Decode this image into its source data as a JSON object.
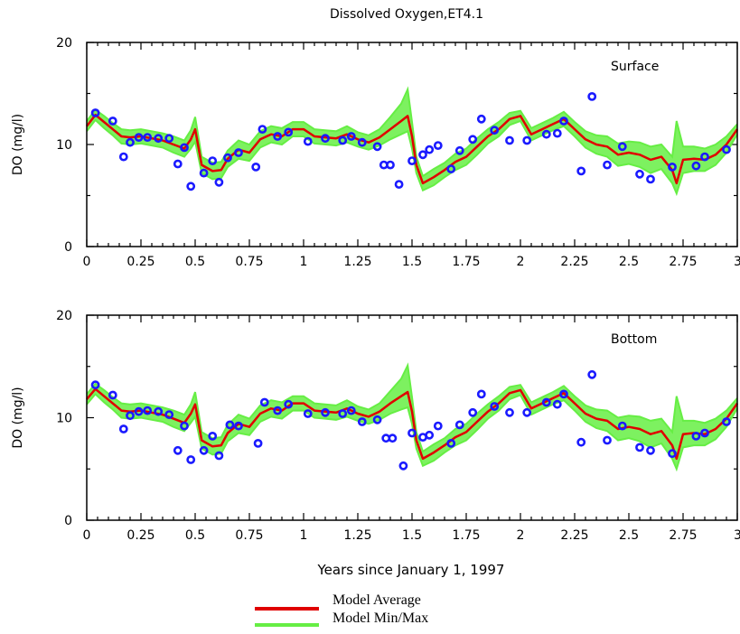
{
  "chart_data": {
    "type": "line",
    "title": "Dissolved Oxygen,ET4.1",
    "xlabel": "Years since January 1, 1997",
    "xlim": [
      0,
      3
    ],
    "x_ticks": [
      "0",
      "0.25",
      "0.5",
      "0.75",
      "1",
      "1.25",
      "1.5",
      "1.75",
      "2",
      "2.25",
      "2.5",
      "2.75",
      "3"
    ],
    "legend": {
      "placement": "bottom-center",
      "entries": [
        {
          "name": "Model Average",
          "color": "#e00000"
        },
        {
          "name": "Model Min/Max",
          "color": "#66ee44"
        }
      ]
    },
    "observation_color": "#1a1aff",
    "panels": [
      {
        "label": "Surface",
        "ylabel": "DO (mg/l)",
        "ylim": [
          0,
          20
        ],
        "y_ticks": [
          "0",
          "10",
          "20"
        ],
        "series": [
          {
            "name": "Model Average",
            "x": [
              0,
              0.04,
              0.08,
              0.12,
              0.16,
              0.2,
              0.25,
              0.3,
              0.35,
              0.4,
              0.45,
              0.48,
              0.5,
              0.53,
              0.58,
              0.62,
              0.65,
              0.7,
              0.75,
              0.8,
              0.85,
              0.9,
              0.95,
              1.0,
              1.05,
              1.1,
              1.15,
              1.2,
              1.25,
              1.3,
              1.35,
              1.4,
              1.45,
              1.48,
              1.5,
              1.52,
              1.55,
              1.6,
              1.65,
              1.7,
              1.75,
              1.8,
              1.85,
              1.9,
              1.95,
              2.0,
              2.05,
              2.1,
              2.15,
              2.2,
              2.25,
              2.3,
              2.35,
              2.4,
              2.45,
              2.5,
              2.55,
              2.6,
              2.65,
              2.7,
              2.72,
              2.75,
              2.8,
              2.85,
              2.9,
              2.95,
              3.0
            ],
            "y": [
              11.8,
              12.9,
              12.2,
              11.5,
              10.8,
              10.7,
              10.8,
              10.6,
              10.4,
              10.0,
              9.6,
              10.5,
              11.5,
              8.0,
              7.4,
              7.5,
              8.6,
              9.5,
              9.2,
              10.5,
              11.0,
              10.8,
              11.5,
              11.5,
              10.8,
              10.7,
              10.6,
              11.0,
              10.5,
              10.2,
              10.7,
              11.5,
              12.3,
              12.8,
              10.8,
              8.0,
              6.2,
              6.8,
              7.5,
              8.3,
              8.8,
              9.8,
              10.8,
              11.5,
              12.5,
              12.8,
              11.0,
              11.5,
              12.0,
              12.5,
              11.5,
              10.5,
              10.0,
              9.8,
              9.0,
              9.2,
              9.0,
              8.5,
              8.8,
              7.5,
              6.2,
              8.5,
              8.6,
              8.5,
              9.0,
              10.0,
              11.5
            ]
          },
          {
            "name": "Model Min/Max",
            "x": [
              0,
              0.04,
              0.08,
              0.12,
              0.16,
              0.2,
              0.25,
              0.3,
              0.35,
              0.4,
              0.45,
              0.48,
              0.5,
              0.53,
              0.58,
              0.62,
              0.65,
              0.7,
              0.75,
              0.8,
              0.85,
              0.9,
              0.95,
              1.0,
              1.05,
              1.1,
              1.15,
              1.2,
              1.25,
              1.3,
              1.35,
              1.4,
              1.45,
              1.48,
              1.5,
              1.52,
              1.55,
              1.6,
              1.65,
              1.7,
              1.75,
              1.8,
              1.85,
              1.9,
              1.95,
              2.0,
              2.05,
              2.1,
              2.15,
              2.2,
              2.25,
              2.3,
              2.35,
              2.4,
              2.45,
              2.5,
              2.55,
              2.6,
              2.65,
              2.7,
              2.72,
              2.75,
              2.8,
              2.85,
              2.9,
              2.95,
              3.0
            ],
            "y_min": [
              11.3,
              12.4,
              11.6,
              10.9,
              10.1,
              10.0,
              10.1,
              9.9,
              9.7,
              9.2,
              8.8,
              9.6,
              10.3,
              7.2,
              6.6,
              6.7,
              7.8,
              8.6,
              8.4,
              9.7,
              10.2,
              10.0,
              10.8,
              10.8,
              10.1,
              10.0,
              9.9,
              10.2,
              9.8,
              9.5,
              9.9,
              10.5,
              11.0,
              11.3,
              9.6,
              7.2,
              5.5,
              6.0,
              6.8,
              7.5,
              8.0,
              9.0,
              10.1,
              10.8,
              11.9,
              12.3,
              10.4,
              10.9,
              11.4,
              11.8,
              10.8,
              9.7,
              9.1,
              8.8,
              7.9,
              8.1,
              7.8,
              7.2,
              7.6,
              6.2,
              5.2,
              7.2,
              7.4,
              7.4,
              8.0,
              9.2,
              11.0
            ],
            "y_max": [
              12.3,
              13.4,
              12.8,
              12.1,
              11.5,
              11.4,
              11.5,
              11.3,
              11.1,
              10.8,
              10.4,
              11.4,
              12.7,
              8.8,
              8.2,
              8.3,
              9.4,
              10.4,
              10.0,
              11.3,
              11.8,
              11.6,
              12.2,
              12.2,
              11.5,
              11.4,
              11.3,
              11.8,
              11.2,
              10.9,
              11.5,
              12.7,
              14.0,
              15.4,
              12.2,
              8.8,
              6.9,
              7.6,
              8.2,
              9.1,
              9.6,
              10.6,
              11.5,
              12.2,
              13.1,
              13.3,
              11.6,
              12.1,
              12.6,
              13.2,
              12.2,
              11.3,
              10.9,
              10.8,
              10.1,
              10.3,
              10.2,
              9.8,
              10.0,
              8.8,
              12.3,
              9.8,
              9.8,
              9.6,
              10.0,
              10.8,
              12.0
            ]
          },
          {
            "name": "Observations",
            "x": [
              0.04,
              0.12,
              0.17,
              0.2,
              0.24,
              0.28,
              0.33,
              0.38,
              0.42,
              0.45,
              0.48,
              0.54,
              0.58,
              0.61,
              0.65,
              0.7,
              0.78,
              0.81,
              0.88,
              0.93,
              1.02,
              1.1,
              1.18,
              1.22,
              1.27,
              1.34,
              1.37,
              1.4,
              1.44,
              1.5,
              1.55,
              1.58,
              1.62,
              1.68,
              1.72,
              1.78,
              1.82,
              1.88,
              1.95,
              2.03,
              2.12,
              2.17,
              2.2,
              2.28,
              2.33,
              2.4,
              2.47,
              2.55,
              2.6,
              2.7,
              2.81,
              2.85,
              2.95
            ],
            "y": [
              13.1,
              12.3,
              8.8,
              10.2,
              10.7,
              10.7,
              10.6,
              10.6,
              8.1,
              9.7,
              5.9,
              7.2,
              8.4,
              6.3,
              8.7,
              9.2,
              7.8,
              11.5,
              10.8,
              11.2,
              10.3,
              10.6,
              10.4,
              10.8,
              10.2,
              9.8,
              8.0,
              8.0,
              6.1,
              8.4,
              9.0,
              9.5,
              9.9,
              7.6,
              9.4,
              10.5,
              12.5,
              11.4,
              10.4,
              10.4,
              11.0,
              11.1,
              12.3,
              7.4,
              14.7,
              8.0,
              9.8,
              7.1,
              6.6,
              7.8,
              7.9,
              8.8,
              9.5
            ]
          }
        ]
      },
      {
        "label": "Bottom",
        "ylabel": "DO (mg/l)",
        "ylim": [
          0,
          20
        ],
        "y_ticks": [
          "0",
          "10",
          "20"
        ],
        "series": [
          {
            "name": "Model Average",
            "x": [
              0,
              0.04,
              0.08,
              0.12,
              0.16,
              0.2,
              0.25,
              0.3,
              0.35,
              0.4,
              0.45,
              0.48,
              0.5,
              0.53,
              0.58,
              0.62,
              0.65,
              0.7,
              0.75,
              0.8,
              0.85,
              0.9,
              0.95,
              1.0,
              1.05,
              1.1,
              1.15,
              1.2,
              1.25,
              1.3,
              1.35,
              1.4,
              1.45,
              1.48,
              1.5,
              1.52,
              1.55,
              1.6,
              1.65,
              1.7,
              1.75,
              1.8,
              1.85,
              1.9,
              1.95,
              2.0,
              2.05,
              2.1,
              2.15,
              2.2,
              2.25,
              2.3,
              2.35,
              2.4,
              2.45,
              2.5,
              2.55,
              2.6,
              2.65,
              2.7,
              2.72,
              2.75,
              2.8,
              2.85,
              2.9,
              2.95,
              3.0
            ],
            "y": [
              11.8,
              12.8,
              12.1,
              11.4,
              10.7,
              10.6,
              10.7,
              10.5,
              10.3,
              9.9,
              9.5,
              10.4,
              11.3,
              7.8,
              7.2,
              7.3,
              8.5,
              9.4,
              9.1,
              10.4,
              10.9,
              10.7,
              11.4,
              11.4,
              10.7,
              10.6,
              10.5,
              10.9,
              10.4,
              10.1,
              10.6,
              11.4,
              12.1,
              12.5,
              10.6,
              7.8,
              6.0,
              6.6,
              7.3,
              8.1,
              8.6,
              9.6,
              10.6,
              11.4,
              12.4,
              12.7,
              10.9,
              11.4,
              11.9,
              12.4,
              11.4,
              10.4,
              9.9,
              9.7,
              8.9,
              9.1,
              8.9,
              8.4,
              8.7,
              7.3,
              6.0,
              8.4,
              8.5,
              8.4,
              8.9,
              9.9,
              11.4
            ]
          },
          {
            "name": "Model Min/Max",
            "x": [
              0,
              0.04,
              0.08,
              0.12,
              0.16,
              0.2,
              0.25,
              0.3,
              0.35,
              0.4,
              0.45,
              0.48,
              0.5,
              0.53,
              0.58,
              0.62,
              0.65,
              0.7,
              0.75,
              0.8,
              0.85,
              0.9,
              0.95,
              1.0,
              1.05,
              1.1,
              1.15,
              1.2,
              1.25,
              1.3,
              1.35,
              1.4,
              1.45,
              1.48,
              1.5,
              1.52,
              1.55,
              1.6,
              1.65,
              1.7,
              1.75,
              1.8,
              1.85,
              1.9,
              1.95,
              2.0,
              2.05,
              2.1,
              2.15,
              2.2,
              2.25,
              2.3,
              2.35,
              2.4,
              2.45,
              2.5,
              2.55,
              2.6,
              2.65,
              2.7,
              2.72,
              2.75,
              2.8,
              2.85,
              2.9,
              2.95,
              3.0
            ],
            "y_min": [
              11.3,
              12.3,
              11.5,
              10.8,
              10.0,
              9.9,
              10.0,
              9.8,
              9.6,
              9.1,
              8.7,
              9.5,
              10.1,
              7.0,
              6.4,
              6.5,
              7.7,
              8.5,
              8.3,
              9.6,
              10.1,
              9.9,
              10.7,
              10.7,
              10.0,
              9.9,
              9.8,
              10.1,
              9.7,
              9.4,
              9.8,
              10.4,
              10.8,
              11.0,
              9.4,
              7.0,
              5.3,
              5.8,
              6.6,
              7.3,
              7.8,
              8.8,
              9.9,
              10.7,
              11.8,
              12.2,
              10.3,
              10.8,
              11.3,
              11.7,
              10.7,
              9.6,
              9.0,
              8.7,
              7.8,
              8.0,
              7.7,
              7.1,
              7.5,
              6.0,
              5.0,
              7.1,
              7.3,
              7.3,
              7.9,
              9.1,
              10.9
            ],
            "y_max": [
              12.3,
              13.3,
              12.7,
              12.0,
              11.4,
              11.3,
              11.4,
              11.2,
              11.0,
              10.7,
              10.3,
              11.3,
              12.5,
              8.6,
              8.0,
              8.1,
              9.3,
              10.3,
              9.9,
              11.2,
              11.7,
              11.5,
              12.1,
              12.1,
              11.4,
              11.3,
              11.2,
              11.7,
              11.1,
              10.8,
              11.4,
              12.6,
              13.8,
              15.1,
              12.0,
              8.6,
              6.7,
              7.4,
              8.0,
              8.9,
              9.4,
              10.4,
              11.3,
              12.1,
              13.0,
              13.2,
              11.5,
              12.0,
              12.5,
              13.1,
              12.1,
              11.2,
              10.8,
              10.7,
              10.0,
              10.2,
              10.1,
              9.7,
              9.9,
              8.6,
              12.1,
              9.7,
              9.7,
              9.5,
              9.9,
              10.7,
              11.9
            ]
          },
          {
            "name": "Observations",
            "x": [
              0.04,
              0.12,
              0.17,
              0.2,
              0.24,
              0.28,
              0.33,
              0.38,
              0.42,
              0.45,
              0.48,
              0.54,
              0.58,
              0.61,
              0.66,
              0.7,
              0.79,
              0.82,
              0.88,
              0.93,
              1.02,
              1.1,
              1.18,
              1.22,
              1.27,
              1.34,
              1.38,
              1.41,
              1.46,
              1.5,
              1.55,
              1.58,
              1.62,
              1.68,
              1.72,
              1.78,
              1.82,
              1.88,
              1.95,
              2.03,
              2.12,
              2.17,
              2.2,
              2.28,
              2.33,
              2.4,
              2.47,
              2.55,
              2.6,
              2.7,
              2.81,
              2.85,
              2.95
            ],
            "y": [
              13.2,
              12.2,
              8.9,
              10.2,
              10.6,
              10.7,
              10.6,
              10.3,
              6.8,
              9.2,
              5.9,
              6.8,
              8.2,
              6.3,
              9.3,
              9.2,
              7.5,
              11.5,
              10.7,
              11.3,
              10.4,
              10.5,
              10.4,
              10.7,
              9.6,
              9.8,
              8.0,
              8.0,
              5.3,
              8.5,
              8.1,
              8.3,
              9.2,
              7.5,
              9.3,
              10.5,
              12.3,
              11.1,
              10.5,
              10.5,
              11.5,
              11.3,
              12.3,
              7.6,
              14.2,
              7.8,
              9.2,
              7.1,
              6.8,
              6.5,
              8.2,
              8.5,
              9.6
            ]
          }
        ]
      }
    ]
  }
}
